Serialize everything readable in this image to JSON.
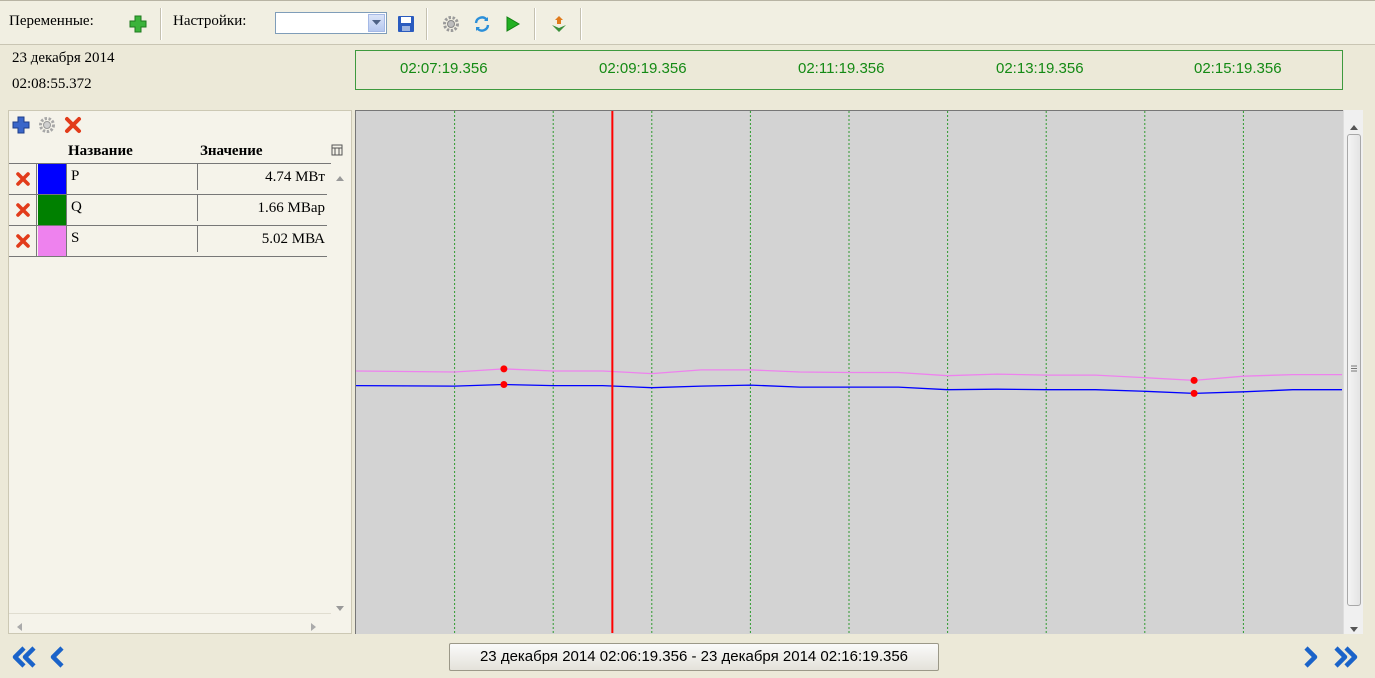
{
  "toolbar": {
    "variables_label": "Переменные:",
    "settings_label": "Настройки:",
    "settings_value": "",
    "icons": [
      "plus-icon",
      "dropdown-arrow-icon",
      "save-icon",
      "gear-icon",
      "refresh-icon",
      "play-icon",
      "export-icon"
    ]
  },
  "date": {
    "line1": "23 декабря 2014",
    "line2": "02:08:55.372"
  },
  "time_axis": {
    "ticks": [
      "02:07:19.356",
      "02:09:19.356",
      "02:11:19.356",
      "02:13:19.356",
      "02:15:19.356"
    ]
  },
  "variables": {
    "header_name": "Название",
    "header_value": "Значение",
    "rows": [
      {
        "name": "P",
        "value": "4.74 МВт",
        "color": "#0000ff"
      },
      {
        "name": "Q",
        "value": "1.66 МВар",
        "color": "#008000"
      },
      {
        "name": "S",
        "value": "5.02 МВА",
        "color": "#ee82ee"
      }
    ]
  },
  "chart_data": {
    "type": "line",
    "x_range": [
      "02:06:19.356",
      "02:16:19.356"
    ],
    "x_ticks": [
      "02:07:19.356",
      "02:09:19.356",
      "02:11:19.356",
      "02:13:19.356",
      "02:15:19.356"
    ],
    "x_minutes": [
      0,
      1,
      1.5,
      2,
      2.5,
      3,
      3.5,
      4,
      4.5,
      5,
      5.5,
      6,
      6.5,
      7,
      7.5,
      8,
      8.5,
      9,
      9.5,
      10
    ],
    "ylim": [
      0,
      10
    ],
    "cursor_minutes": 2.6,
    "grid": "vertical-dotted",
    "series": [
      {
        "name": "S",
        "color": "#ee82ee",
        "values": [
          5.02,
          5.0,
          5.06,
          5.02,
          5.02,
          4.97,
          5.04,
          5.04,
          5.0,
          4.99,
          4.99,
          4.93,
          4.96,
          4.94,
          4.94,
          4.89,
          4.84,
          4.92,
          4.95,
          4.95
        ],
        "markers_minutes": [
          1.5,
          8.5
        ]
      },
      {
        "name": "P",
        "color": "#0000ff",
        "values": [
          4.74,
          4.73,
          4.76,
          4.74,
          4.74,
          4.7,
          4.73,
          4.75,
          4.71,
          4.71,
          4.71,
          4.66,
          4.67,
          4.66,
          4.66,
          4.63,
          4.59,
          4.62,
          4.66,
          4.66
        ],
        "markers_minutes": [
          1.5,
          8.5
        ]
      }
    ]
  },
  "bottom": {
    "range_label": "23 декабря 2014 02:06:19.356 - 23 декабря 2014 02:16:19.356"
  }
}
